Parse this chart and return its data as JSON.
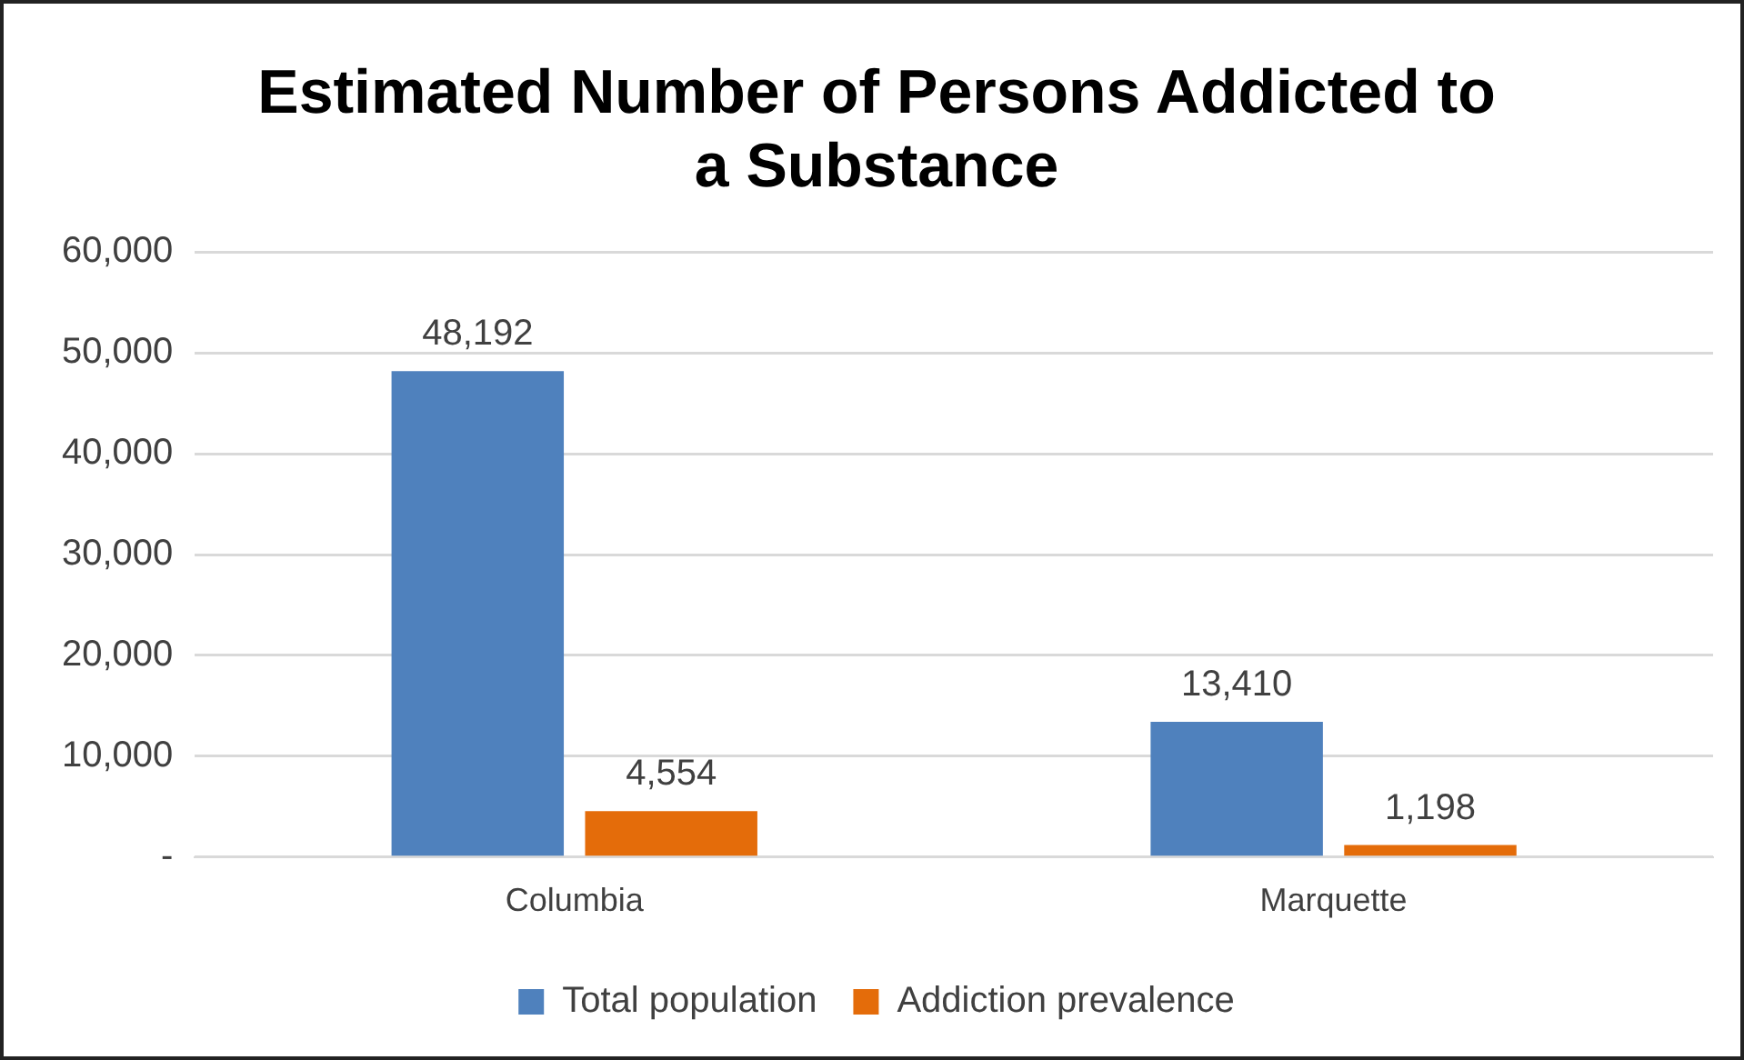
{
  "chart_data": {
    "type": "bar",
    "title": "Estimated Number of Persons Addicted to a Substance",
    "categories": [
      "Columbia",
      "Marquette"
    ],
    "series": [
      {
        "name": "Total population",
        "color": "#4f81bd",
        "values": [
          48192,
          13410
        ],
        "value_labels": [
          "48,192",
          "13,410"
        ]
      },
      {
        "name": "Addiction prevalence",
        "color": "#e46c0a",
        "values": [
          4554,
          1198
        ],
        "value_labels": [
          "4,554",
          "1,198"
        ]
      }
    ],
    "ylim": [
      0,
      60000
    ],
    "yticks": [
      {
        "value": 0,
        "label": "-"
      },
      {
        "value": 10000,
        "label": "10,000"
      },
      {
        "value": 20000,
        "label": "20,000"
      },
      {
        "value": 30000,
        "label": "30,000"
      },
      {
        "value": 40000,
        "label": "40,000"
      },
      {
        "value": 50000,
        "label": "50,000"
      },
      {
        "value": 60000,
        "label": "60,000"
      }
    ],
    "grid": "y",
    "legend": "bottom"
  }
}
